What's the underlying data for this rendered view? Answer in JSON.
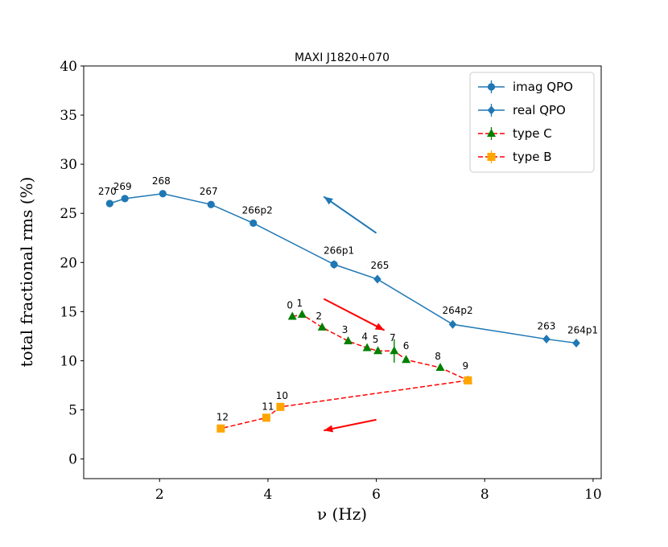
{
  "chart_data": {
    "type": "line",
    "title": "MAXI J1820+070",
    "xlabel": "ν (Hz)",
    "ylabel": "total fractional rms (%)",
    "xlim": [
      0.6,
      10.15
    ],
    "ylim": [
      -2,
      40
    ],
    "xticks": [
      2,
      4,
      6,
      8,
      10
    ],
    "yticks": [
      0,
      5,
      10,
      15,
      20,
      25,
      30,
      35,
      40
    ],
    "legend_position": "top-right",
    "colors": {
      "blue": "#1f77b4",
      "green": "#008000",
      "red": "#ff0000",
      "orange": "#ffa500"
    },
    "series": [
      {
        "name": "imag QPO",
        "marker": "circle",
        "color": "#1f77b4",
        "linestyle": "solid",
        "points": [
          {
            "x": 1.08,
            "y": 26.0,
            "label": "270"
          },
          {
            "x": 1.36,
            "y": 26.5,
            "label": "269"
          },
          {
            "x": 2.06,
            "y": 27.0,
            "label": "268"
          },
          {
            "x": 2.95,
            "y": 25.9,
            "label": "267"
          },
          {
            "x": 3.73,
            "y": 24.0,
            "label": "266p2"
          },
          {
            "x": 5.22,
            "y": 19.8,
            "label": "266p1"
          }
        ]
      },
      {
        "name": "real QPO",
        "marker": "diamond",
        "color": "#1f77b4",
        "linestyle": "solid",
        "points": [
          {
            "x": 5.22,
            "y": 19.8,
            "label": ""
          },
          {
            "x": 6.02,
            "y": 18.3,
            "label": "265"
          },
          {
            "x": 7.41,
            "y": 13.7,
            "label": "264p2"
          },
          {
            "x": 9.14,
            "y": 12.2,
            "label": "263"
          },
          {
            "x": 9.69,
            "y": 11.8,
            "label": "264p1"
          }
        ]
      },
      {
        "name": "type C",
        "marker": "triangle",
        "color": "#008000",
        "linecolor": "#ff0000",
        "linestyle": "dashed",
        "points": [
          {
            "x": 4.45,
            "y": 14.5,
            "label": "0"
          },
          {
            "x": 4.63,
            "y": 14.7,
            "label": "1"
          },
          {
            "x": 5.0,
            "y": 13.4,
            "label": "2"
          },
          {
            "x": 5.48,
            "y": 12.0,
            "label": "3"
          },
          {
            "x": 5.83,
            "y": 11.3,
            "label": "4"
          },
          {
            "x": 6.03,
            "y": 11.0,
            "label": "5"
          },
          {
            "x": 6.33,
            "y": 11.0,
            "label": "7"
          },
          {
            "x": 6.55,
            "y": 10.1,
            "label": "6"
          },
          {
            "x": 7.18,
            "y": 9.3,
            "label": "8"
          },
          {
            "x": 7.69,
            "y": 8.0,
            "label": "9"
          }
        ]
      },
      {
        "name": "type B",
        "marker": "square",
        "color": "#ffa500",
        "linecolor": "#ff0000",
        "linestyle": "dashed",
        "points": [
          {
            "x": 7.69,
            "y": 8.0,
            "label": ""
          },
          {
            "x": 4.23,
            "y": 5.3,
            "label": "10"
          },
          {
            "x": 3.97,
            "y": 4.2,
            "label": "11"
          },
          {
            "x": 3.13,
            "y": 3.1,
            "label": "12"
          }
        ]
      }
    ],
    "arrows": [
      {
        "from": [
          6.0,
          23.0
        ],
        "to": [
          5.03,
          26.7
        ],
        "color": "#1f77b4"
      },
      {
        "from": [
          5.03,
          16.3
        ],
        "to": [
          6.15,
          13.1
        ],
        "color": "#ff0000"
      },
      {
        "from": [
          6.0,
          4.0
        ],
        "to": [
          5.03,
          2.9
        ],
        "color": "#ff0000"
      }
    ]
  }
}
